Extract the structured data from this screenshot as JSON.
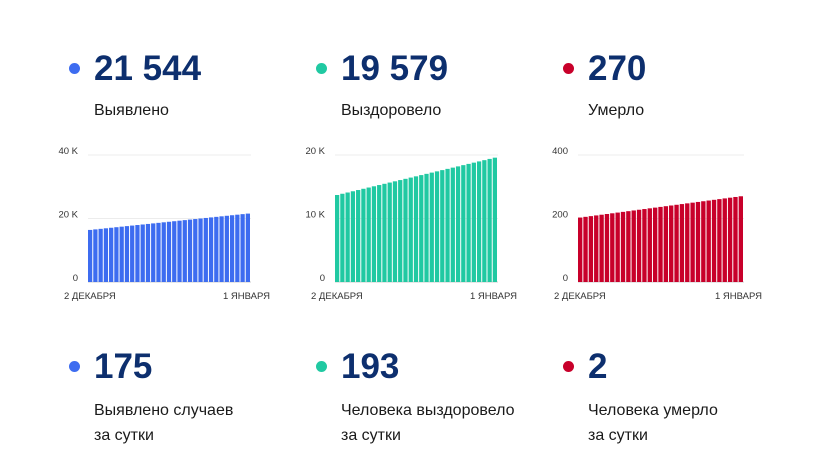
{
  "colors": {
    "blue": "#3d6cf0",
    "green": "#20c9a2",
    "red": "#c8002a",
    "number": "#0d2f6e"
  },
  "top": [
    {
      "value": "21 544",
      "label": "Выявлено"
    },
    {
      "value": "19 579",
      "label": "Выздоровело"
    },
    {
      "value": "270",
      "label": "Умерло"
    }
  ],
  "bottom": [
    {
      "value": "175",
      "line1": "Выявлено случаев",
      "line2": "за сутки"
    },
    {
      "value": "193",
      "line1": "Человека выздоровело",
      "line2": "за сутки"
    },
    {
      "value": "2",
      "line1": "Человека умерло",
      "line2": "за сутки"
    }
  ],
  "chart_data": [
    {
      "type": "bar",
      "series": [
        {
          "name": "Выявлено",
          "color": "#3d6cf0",
          "start": 16400,
          "end": 21544
        }
      ],
      "ylim": [
        0,
        40000
      ],
      "yticks": [
        "0",
        "20 K",
        "40 K"
      ],
      "x_labels": [
        "2 ДЕКАБРЯ",
        "1 ЯНВАРЯ"
      ],
      "bars": 31,
      "grid": true
    },
    {
      "type": "bar",
      "series": [
        {
          "name": "Выздоровело",
          "color": "#20c9a2",
          "start": 13700,
          "end": 19579
        }
      ],
      "ylim": [
        0,
        20000
      ],
      "yticks": [
        "0",
        "10 K",
        "20 K"
      ],
      "x_labels": [
        "2 ДЕКАБРЯ",
        "1 ЯНВАРЯ"
      ],
      "bars": 31,
      "grid": true
    },
    {
      "type": "bar",
      "series": [
        {
          "name": "Умерло",
          "color": "#c8002a",
          "start": 203,
          "end": 270
        }
      ],
      "ylim": [
        0,
        400
      ],
      "yticks": [
        "0",
        "200",
        "400"
      ],
      "x_labels": [
        "2 ДЕКАБРЯ",
        "1 ЯНВАРЯ"
      ],
      "bars": 31,
      "grid": true
    }
  ]
}
